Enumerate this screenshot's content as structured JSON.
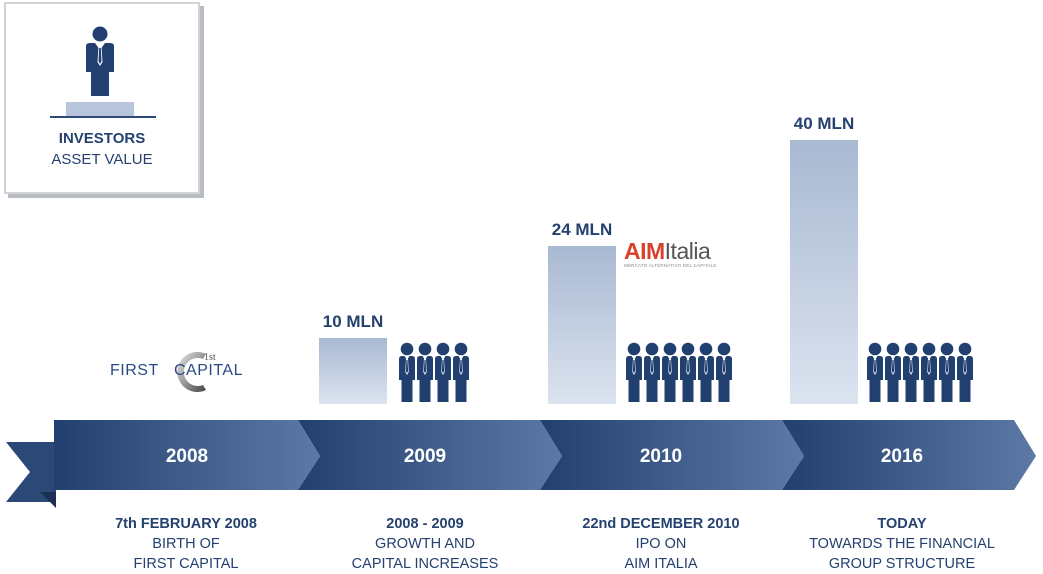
{
  "legend": {
    "icon": "person-icon",
    "title": "INVESTORS",
    "subtitle": "ASSET VALUE"
  },
  "colors": {
    "navy": "#24416f",
    "arrow_dark": "#22406f",
    "arrow_light": "#5d79a6",
    "bar_top": "#a9b9d2",
    "bar_bottom": "#dbe3ef"
  },
  "logos": {
    "first_capital": {
      "text_left": "FIRST",
      "text_right": "CAPITAL",
      "superscript": "1st"
    },
    "aim_italia": {
      "aim": "AIM",
      "italia": "Italia",
      "tagline": "MERCATO ALTERNATIVO DEL CAPITALE"
    }
  },
  "chart_data": {
    "type": "bar",
    "categories": [
      "2008",
      "2009",
      "2010",
      "2016"
    ],
    "values": [
      null,
      10,
      24,
      40
    ],
    "value_labels": [
      "",
      "10 MLN",
      "24 MLN",
      "40 MLN"
    ],
    "investor_icons": [
      0,
      4,
      6,
      6
    ]
  },
  "timeline": [
    {
      "year": "2008",
      "caption_1": "7th FEBRUARY 2008",
      "caption_2": "BIRTH OF",
      "caption_3": "FIRST CAPITAL"
    },
    {
      "year": "2009",
      "caption_1": "2008 - 2009",
      "caption_2": "GROWTH AND",
      "caption_3": "CAPITAL INCREASES"
    },
    {
      "year": "2010",
      "caption_1": "22nd DECEMBER 2010",
      "caption_2": "IPO ON",
      "caption_3": "AIM ITALIA"
    },
    {
      "year": "2016",
      "caption_1": "TODAY",
      "caption_2": "TOWARDS THE FINANCIAL",
      "caption_3": "GROUP STRUCTURE"
    }
  ]
}
